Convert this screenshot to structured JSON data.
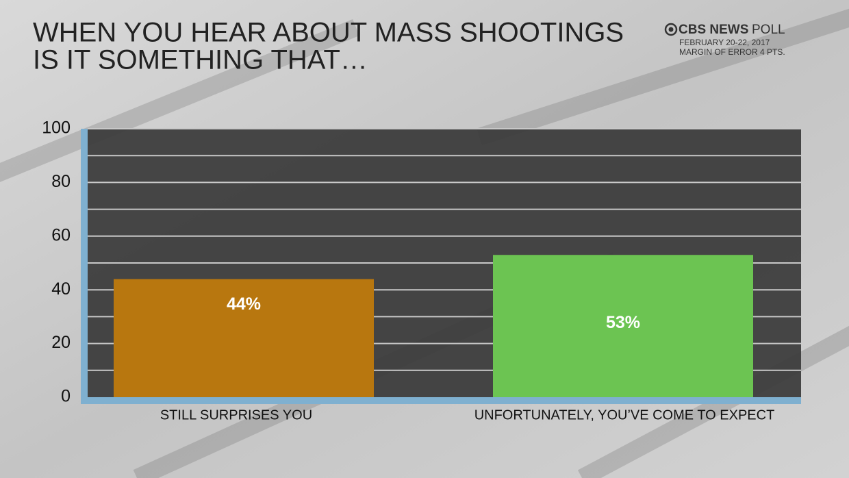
{
  "chart_data": {
    "type": "bar",
    "title": [
      "WHEN YOU HEAR ABOUT MASS SHOOTINGS",
      "IS IT SOMETHING THAT…"
    ],
    "source_brand": "CBS NEWS",
    "source_label": "POLL",
    "notes": [
      "FEBRUARY 20-22, 2017",
      "MARGIN OF ERROR 4 PTS."
    ],
    "categories": [
      "STILL SURPRISES YOU",
      "UNFORTUNATELY, YOU’VE COME TO EXPECT"
    ],
    "values": [
      44,
      53
    ],
    "value_labels": [
      "44%",
      "53%"
    ],
    "colors": [
      "#b8770f",
      "#6cc452"
    ],
    "ylim": [
      0,
      100
    ],
    "yticks": [
      0,
      20,
      40,
      60,
      80,
      100
    ],
    "minor_yticks": [
      10,
      30,
      50,
      70,
      90
    ],
    "grid": true
  }
}
